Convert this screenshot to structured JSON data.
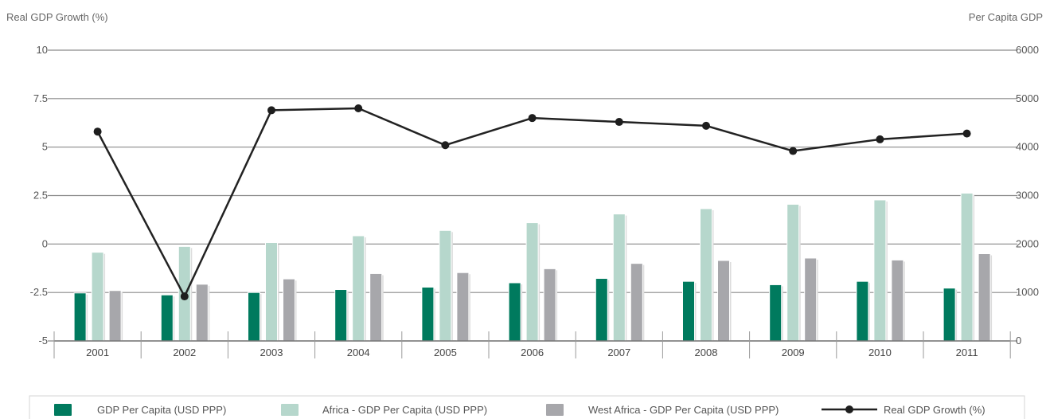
{
  "chart_data": {
    "type": "bar",
    "y_left_label": "Real GDP Growth (%)",
    "y_right_label": "Per Capita GDP",
    "y_left_ticks": [
      "10",
      "7.5",
      "5",
      "2.5",
      "0",
      "-2.5",
      "-5"
    ],
    "y_left_tick_values": [
      10,
      7.5,
      5,
      2.5,
      0,
      -2.5,
      -5
    ],
    "y_right_ticks": [
      "6000",
      "5000",
      "4000",
      "3000",
      "2000",
      "1000",
      "0"
    ],
    "y_right_tick_values": [
      6000,
      5000,
      4000,
      3000,
      2000,
      1000,
      0
    ],
    "ylim_left": [
      -5,
      10
    ],
    "ylim_right": [
      0,
      6000
    ],
    "categories": [
      "2001",
      "2002",
      "2003",
      "2004",
      "2005",
      "2006",
      "2007",
      "2008",
      "2009",
      "2010",
      "2011"
    ],
    "series": [
      {
        "name": "GDP Per Capita (USD PPP)",
        "kind": "bar",
        "axis": "right",
        "color": "#007a5e",
        "values": [
          990,
          950,
          1000,
          1060,
          1110,
          1200,
          1290,
          1230,
          1160,
          1230,
          1090
        ]
      },
      {
        "name": "Africa - GDP Per Capita (USD PPP)",
        "kind": "bar",
        "axis": "right",
        "color": "#b6d7cc",
        "values": [
          1830,
          1950,
          2030,
          2170,
          2280,
          2440,
          2620,
          2730,
          2820,
          2910,
          3050
        ]
      },
      {
        "name": "West Africa - GDP Per Capita (USD PPP)",
        "kind": "bar",
        "axis": "right",
        "color": "#a7a7ab",
        "values": [
          1040,
          1170,
          1280,
          1390,
          1410,
          1490,
          1600,
          1660,
          1710,
          1670,
          1800
        ]
      },
      {
        "name": "Real GDP Growth (%)",
        "kind": "line",
        "axis": "left",
        "color": "#222222",
        "values": [
          5.8,
          -2.7,
          6.9,
          7.0,
          5.1,
          6.5,
          6.3,
          6.1,
          4.8,
          5.4,
          5.7
        ]
      }
    ],
    "grid": true,
    "legend_position": "bottom"
  }
}
